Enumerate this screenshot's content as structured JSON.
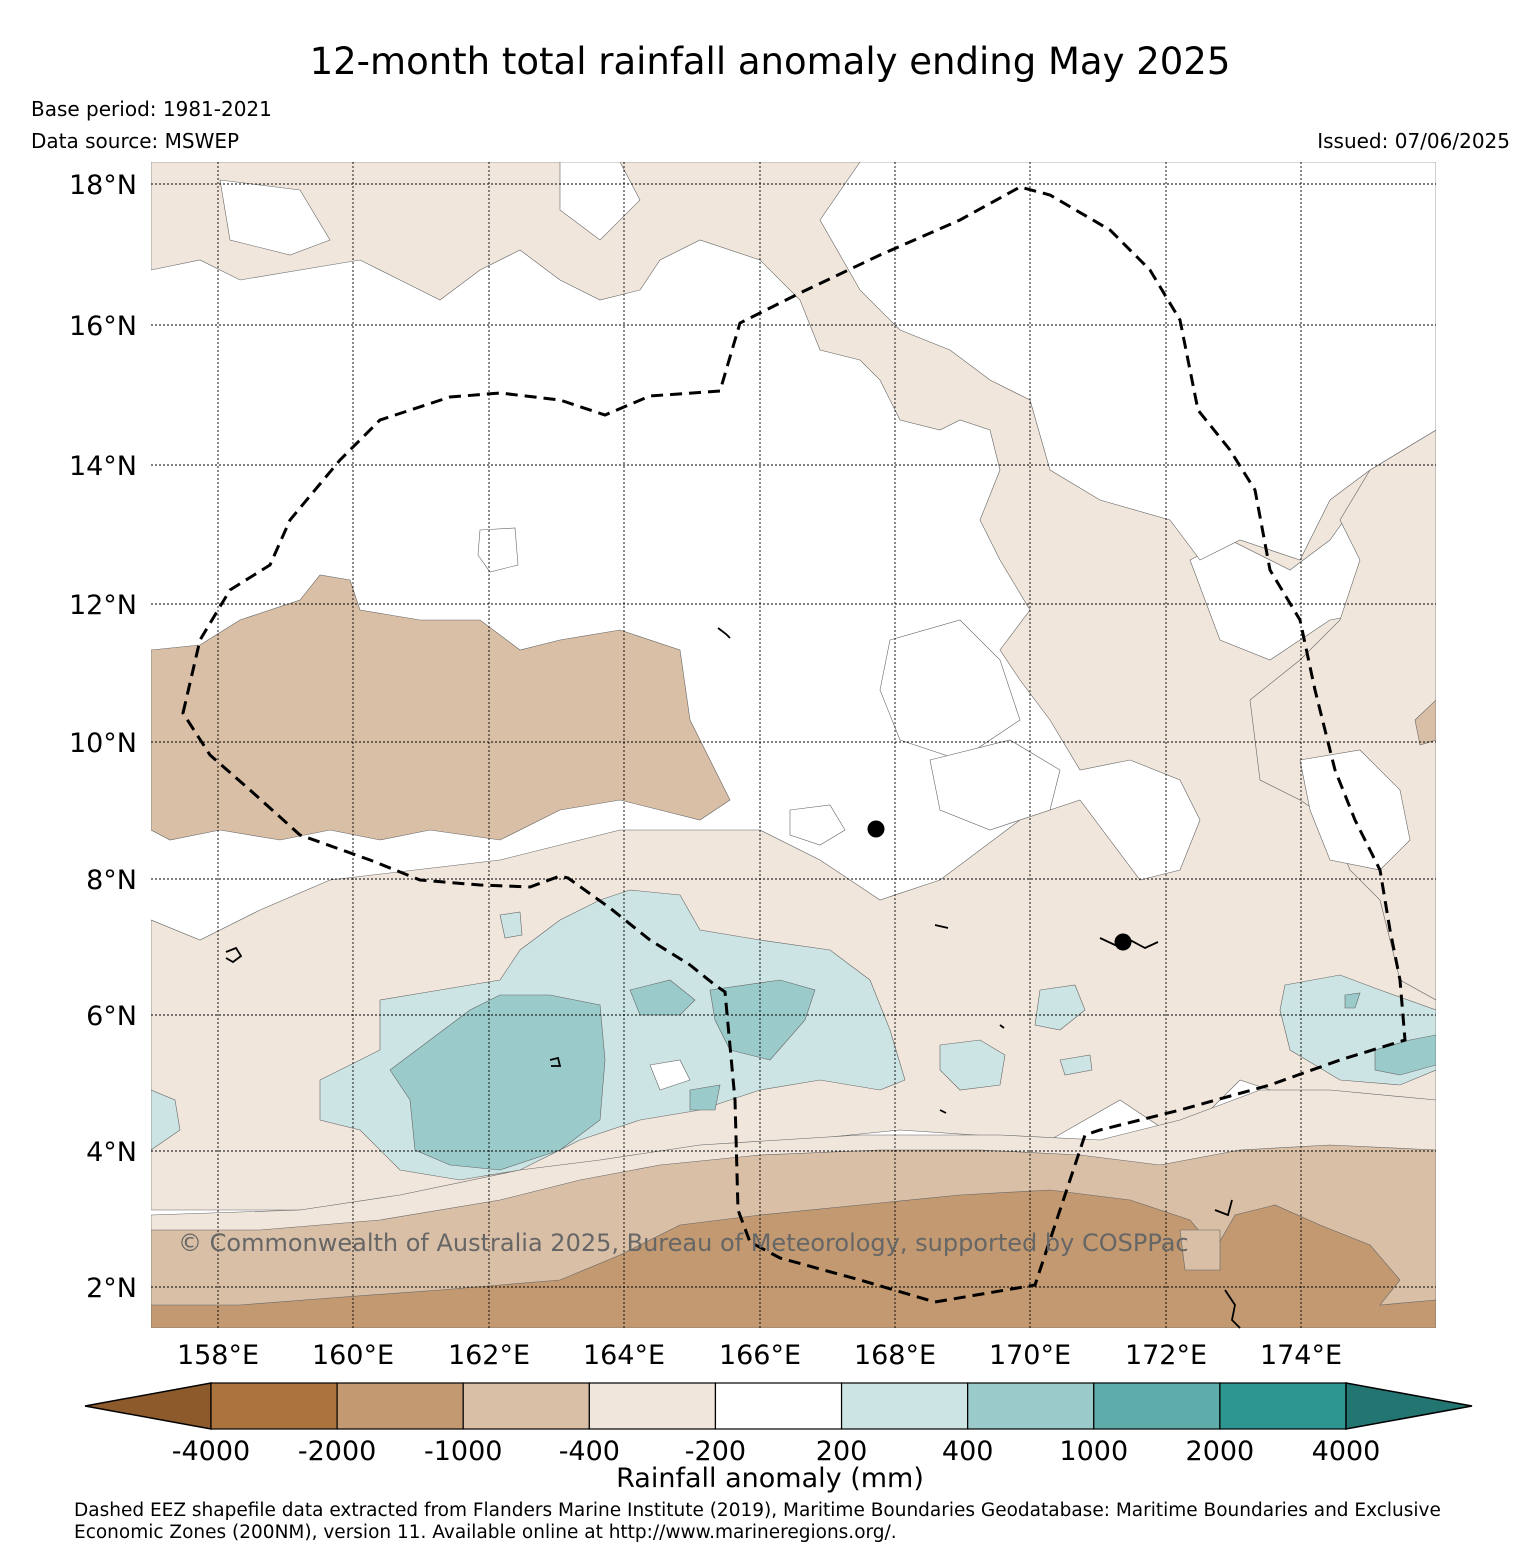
{
  "header": {
    "title": "12-month total rainfall anomaly ending May 2025",
    "base_period": "Base period: 1981-2021",
    "data_source": "Data source: MSWEP",
    "issued": "Issued: 07/06/2025"
  },
  "map": {
    "latitude_labels": [
      "18°N",
      "16°N",
      "14°N",
      "12°N",
      "10°N",
      "8°N",
      "6°N",
      "4°N",
      "2°N"
    ],
    "longitude_labels": [
      "158°E",
      "160°E",
      "162°E",
      "164°E",
      "166°E",
      "168°E",
      "170°E",
      "172°E",
      "174°E"
    ],
    "copyright": "© Commonwealth of Australia 2025, Bureau of Meteorology, supported by COSPPac",
    "eez_line_style": "dashed",
    "station_markers": 2
  },
  "colorbar": {
    "tick_labels": [
      "-4000",
      "-2000",
      "-1000",
      "-400",
      "-200",
      "200",
      "400",
      "1000",
      "2000",
      "4000"
    ],
    "bins": [
      {
        "range": "< -4000",
        "color": "#8c5a2b"
      },
      {
        "range": "-4000 to -2000",
        "color": "#ab743f"
      },
      {
        "range": "-2000 to -1000",
        "color": "#c29970"
      },
      {
        "range": "-1000 to -400",
        "color": "#d9bfa6"
      },
      {
        "range": "-400 to -200",
        "color": "#f0e6dc"
      },
      {
        "range": "-200 to 200",
        "color": "#ffffff"
      },
      {
        "range": "200 to 400",
        "color": "#cce4e3"
      },
      {
        "range": "400 to 1000",
        "color": "#9acbca"
      },
      {
        "range": "1000 to 2000",
        "color": "#5fadab"
      },
      {
        "range": "2000 to 4000",
        "color": "#2e9691"
      },
      {
        "range": "> 4000",
        "color": "#237572"
      }
    ],
    "label": "Rainfall anomaly (mm)"
  },
  "footnote": "Dashed EEZ shapefile data extracted from Flanders Marine Institute (2019), Maritime Boundaries Geodatabase: Maritime Boundaries and Exclusive Economic Zones (200NM), version 11. Available online at http://www.marineregions.org/."
}
